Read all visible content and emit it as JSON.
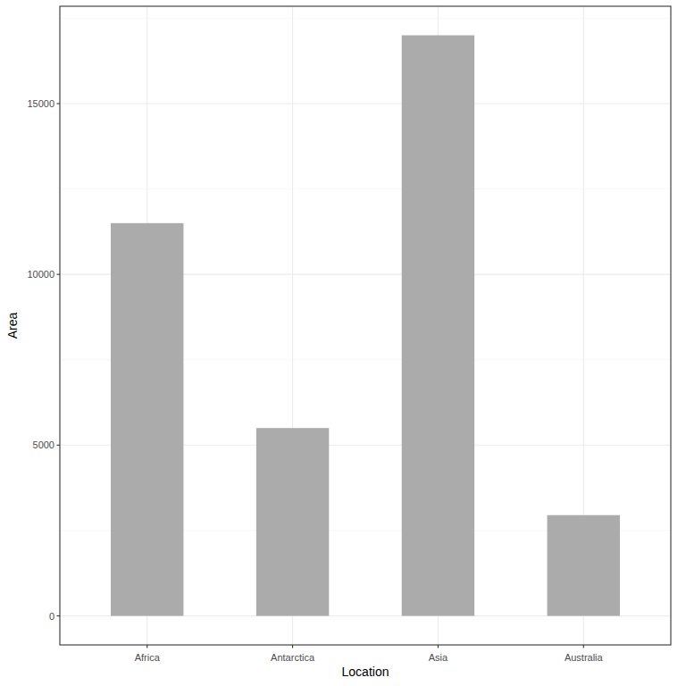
{
  "chart_data": {
    "type": "bar",
    "x_label": "Location",
    "y_label": "Area",
    "categories": [
      "Africa",
      "Antarctica",
      "Asia",
      "Australia"
    ],
    "values": [
      11500,
      5500,
      17000,
      2950
    ],
    "color": "#ababab",
    "ylim": [
      -850,
      17850
    ],
    "yticks": [
      0,
      5000,
      10000,
      15000
    ],
    "grid": true
  }
}
